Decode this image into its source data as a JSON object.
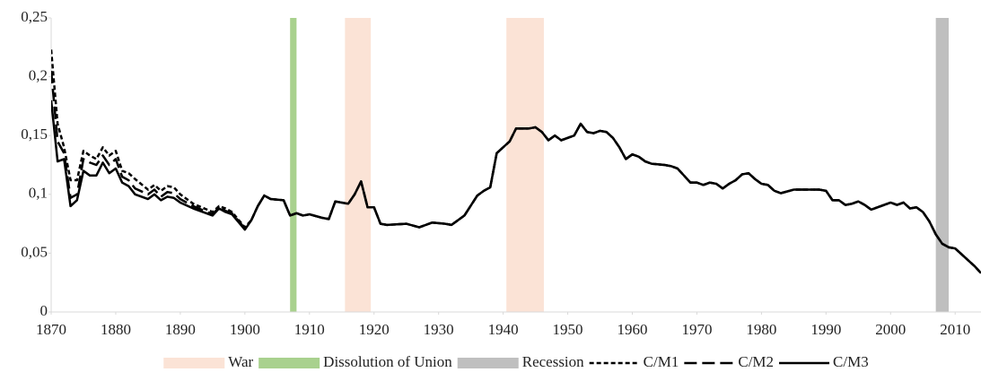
{
  "chart_data": {
    "type": "line",
    "x": [
      1870,
      1871,
      1872,
      1873,
      1874,
      1875,
      1876,
      1877,
      1878,
      1879,
      1880,
      1881,
      1882,
      1883,
      1885,
      1886,
      1887,
      1888,
      1889,
      1890,
      1892,
      1895,
      1896,
      1897,
      1898,
      1900,
      1901,
      1902,
      1903,
      1904,
      1906,
      1907,
      1908,
      1909,
      1910,
      1912,
      1913,
      1914,
      1916,
      1917,
      1918,
      1919,
      1920,
      1921,
      1922,
      1925,
      1927,
      1929,
      1931,
      1932,
      1934,
      1936,
      1937,
      1938,
      1939,
      1940,
      1941,
      1942,
      1943,
      1944,
      1945,
      1946,
      1947,
      1948,
      1949,
      1950,
      1951,
      1952,
      1953,
      1954,
      1955,
      1956,
      1957,
      1958,
      1959,
      1960,
      1961,
      1962,
      1963,
      1965,
      1966,
      1967,
      1968,
      1969,
      1970,
      1971,
      1972,
      1973,
      1974,
      1975,
      1976,
      1977,
      1978,
      1979,
      1980,
      1981,
      1982,
      1983,
      1985,
      1987,
      1989,
      1990,
      1991,
      1992,
      1993,
      1994,
      1995,
      1996,
      1997,
      1998,
      1999,
      2000,
      2001,
      2002,
      2003,
      2004,
      2005,
      2006,
      2007,
      2008,
      2009,
      2010,
      2011,
      2012,
      2013,
      2014
    ],
    "series": [
      {
        "name": "C/M1",
        "color": "#000000",
        "dash": "short",
        "values": [
          0.223,
          0.16,
          0.14,
          0.112,
          0.112,
          0.137,
          0.133,
          0.13,
          0.14,
          0.133,
          0.137,
          0.12,
          0.118,
          0.113,
          0.104,
          0.108,
          0.103,
          0.107,
          0.106,
          0.1,
          0.092,
          0.085,
          0.09,
          0.088,
          0.085,
          0.072,
          0.078,
          0.09,
          0.099,
          0.096,
          0.095,
          0.082,
          0.084,
          0.082,
          0.083,
          0.08,
          0.079,
          0.094,
          0.092,
          0.1,
          0.111,
          0.089,
          0.089,
          0.075,
          0.074,
          0.075,
          0.072,
          0.076,
          0.075,
          0.074,
          0.082,
          0.099,
          0.103,
          0.106,
          0.135,
          0.14,
          0.145,
          0.156,
          0.156,
          0.156,
          0.157,
          0.153,
          0.146,
          0.15,
          0.146,
          0.148,
          0.15,
          0.16,
          0.153,
          0.152,
          0.154,
          0.153,
          0.148,
          0.14,
          0.13,
          0.134,
          0.132,
          0.128,
          0.126,
          0.125,
          0.124,
          0.122,
          0.116,
          0.11,
          0.11,
          0.108,
          0.11,
          0.109,
          0.105,
          0.109,
          0.112,
          0.117,
          0.118,
          0.113,
          0.109,
          0.108,
          0.103,
          0.101,
          0.104,
          0.104,
          0.104,
          0.103,
          0.095,
          0.095,
          0.091,
          0.092,
          0.094,
          0.091,
          0.087,
          0.089,
          0.091,
          0.093,
          0.091,
          0.093,
          0.088,
          0.089,
          0.085,
          0.077,
          0.066,
          0.058,
          0.055,
          0.054,
          0.049,
          0.044,
          0.039,
          0.033
        ]
      },
      {
        "name": "C/M2",
        "color": "#000000",
        "dash": "long",
        "values": [
          0.205,
          0.145,
          0.135,
          0.097,
          0.1,
          0.13,
          0.127,
          0.125,
          0.133,
          0.125,
          0.13,
          0.115,
          0.112,
          0.105,
          0.1,
          0.104,
          0.098,
          0.102,
          0.101,
          0.096,
          0.09,
          0.083,
          0.089,
          0.086,
          0.084,
          0.071,
          0.078,
          0.09,
          0.099,
          0.096,
          0.095,
          0.082,
          0.084,
          0.082,
          0.083,
          0.08,
          0.079,
          0.094,
          0.092,
          0.1,
          0.111,
          0.089,
          0.089,
          0.075,
          0.074,
          0.075,
          0.072,
          0.076,
          0.075,
          0.074,
          0.082,
          0.099,
          0.103,
          0.106,
          0.135,
          0.14,
          0.145,
          0.156,
          0.156,
          0.156,
          0.157,
          0.153,
          0.146,
          0.15,
          0.146,
          0.148,
          0.15,
          0.16,
          0.153,
          0.152,
          0.154,
          0.153,
          0.148,
          0.14,
          0.13,
          0.134,
          0.132,
          0.128,
          0.126,
          0.125,
          0.124,
          0.122,
          0.116,
          0.11,
          0.11,
          0.108,
          0.11,
          0.109,
          0.105,
          0.109,
          0.112,
          0.117,
          0.118,
          0.113,
          0.109,
          0.108,
          0.103,
          0.101,
          0.104,
          0.104,
          0.104,
          0.103,
          0.095,
          0.095,
          0.091,
          0.092,
          0.094,
          0.091,
          0.087,
          0.089,
          0.091,
          0.093,
          0.091,
          0.093,
          0.088,
          0.089,
          0.085,
          0.077,
          0.066,
          0.058,
          0.055,
          0.054,
          0.049,
          0.044,
          0.039,
          0.033
        ]
      },
      {
        "name": "C/M3",
        "color": "#000000",
        "dash": "solid",
        "values": [
          0.18,
          0.128,
          0.13,
          0.09,
          0.095,
          0.12,
          0.116,
          0.116,
          0.127,
          0.118,
          0.122,
          0.11,
          0.107,
          0.1,
          0.096,
          0.1,
          0.095,
          0.098,
          0.097,
          0.093,
          0.088,
          0.082,
          0.088,
          0.085,
          0.083,
          0.07,
          0.078,
          0.09,
          0.099,
          0.096,
          0.095,
          0.082,
          0.084,
          0.082,
          0.083,
          0.08,
          0.079,
          0.094,
          0.092,
          0.1,
          0.111,
          0.089,
          0.089,
          0.075,
          0.074,
          0.075,
          0.072,
          0.076,
          0.075,
          0.074,
          0.082,
          0.099,
          0.103,
          0.106,
          0.135,
          0.14,
          0.145,
          0.156,
          0.156,
          0.156,
          0.157,
          0.153,
          0.146,
          0.15,
          0.146,
          0.148,
          0.15,
          0.16,
          0.153,
          0.152,
          0.154,
          0.153,
          0.148,
          0.14,
          0.13,
          0.134,
          0.132,
          0.128,
          0.126,
          0.125,
          0.124,
          0.122,
          0.116,
          0.11,
          0.11,
          0.108,
          0.11,
          0.109,
          0.105,
          0.109,
          0.112,
          0.117,
          0.118,
          0.113,
          0.109,
          0.108,
          0.103,
          0.101,
          0.104,
          0.104,
          0.104,
          0.103,
          0.095,
          0.095,
          0.091,
          0.092,
          0.094,
          0.091,
          0.087,
          0.089,
          0.091,
          0.093,
          0.091,
          0.093,
          0.088,
          0.089,
          0.085,
          0.077,
          0.066,
          0.058,
          0.055,
          0.054,
          0.049,
          0.044,
          0.039,
          0.033
        ]
      }
    ],
    "shaded_periods": [
      {
        "name": "War",
        "color": "#fbe3d6",
        "spans": [
          [
            1915.5,
            1919.5
          ],
          [
            1940.5,
            1946.3
          ]
        ]
      },
      {
        "name": "Dissolution of Union",
        "color": "#a9d18e",
        "spans": [
          [
            1907,
            1908
          ]
        ]
      },
      {
        "name": "Recession",
        "color": "#bfbfbf",
        "spans": [
          [
            2007,
            2009
          ]
        ]
      }
    ],
    "xlim": [
      1870,
      2014
    ],
    "xticks": [
      1870,
      1880,
      1890,
      1900,
      1910,
      1920,
      1930,
      1940,
      1950,
      1960,
      1970,
      1980,
      1990,
      2000,
      2010
    ],
    "ylim": [
      0,
      0.25
    ],
    "yticks": [
      0,
      {
        "value": 0.05,
        "label": "0,05"
      },
      {
        "value": 0.1,
        "label": "0,1"
      },
      {
        "value": 0.15,
        "label": "0,15"
      },
      {
        "value": 0.2,
        "label": "0,2"
      },
      {
        "value": 0.25,
        "label": "0,25"
      }
    ]
  }
}
